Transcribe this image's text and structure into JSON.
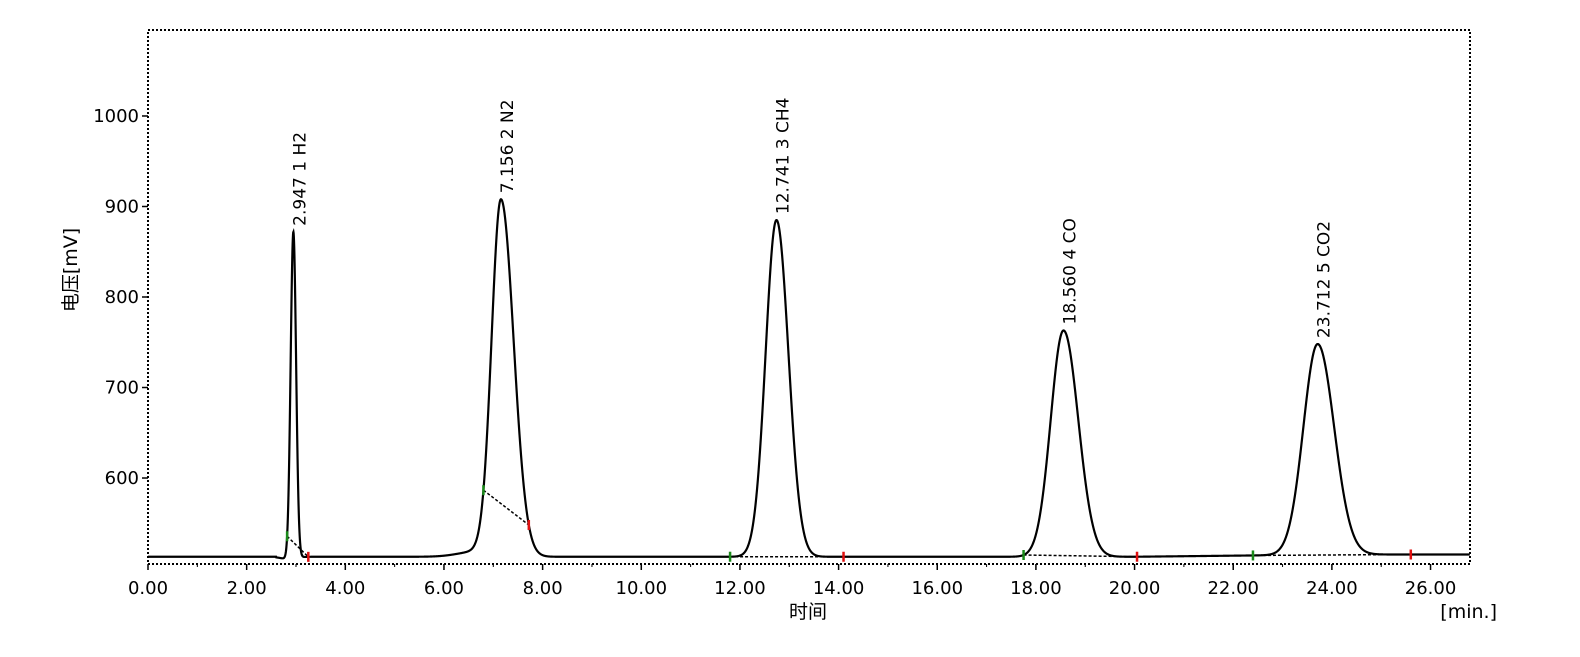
{
  "chart_data": {
    "type": "line",
    "title": "",
    "xlabel": "时间",
    "xunit": "[min.]",
    "ylabel": "电压[mV]",
    "xlim": [
      0,
      26.8
    ],
    "ylim": [
      505,
      1095
    ],
    "baseline_mv": 513,
    "x_ticks": [
      "0.00",
      "2.00",
      "4.00",
      "6.00",
      "8.00",
      "10.00",
      "12.00",
      "14.00",
      "16.00",
      "18.00",
      "20.00",
      "22.00",
      "24.00",
      "26.00"
    ],
    "x_tick_values": [
      0,
      2,
      4,
      6,
      8,
      10,
      12,
      14,
      16,
      18,
      20,
      22,
      24,
      26
    ],
    "y_ticks": [
      "600",
      "700",
      "800",
      "900",
      "1000"
    ],
    "y_tick_values": [
      600,
      700,
      800,
      900,
      1000
    ],
    "peaks": [
      {
        "number": "1",
        "name": "H2",
        "rt": "2.947",
        "x": 2.947,
        "height_mv": 872,
        "start": 2.82,
        "end": 3.25
      },
      {
        "number": "2",
        "name": "N2",
        "rt": "7.156",
        "x": 7.156,
        "height_mv": 908,
        "start": 6.8,
        "end": 7.72
      },
      {
        "number": "3",
        "name": "CH4",
        "rt": "12.741",
        "x": 12.741,
        "height_mv": 885,
        "start": 11.8,
        "end": 14.1
      },
      {
        "number": "4",
        "name": "CO",
        "rt": "18.560",
        "x": 18.56,
        "height_mv": 763,
        "start": 17.75,
        "end": 20.05
      },
      {
        "number": "5",
        "name": "CO2",
        "rt": "23.712",
        "x": 23.712,
        "height_mv": 748,
        "start": 22.4,
        "end": 25.6
      }
    ],
    "colors": {
      "trace": "#000000",
      "peak_start_marker": "#1a8a1a",
      "peak_end_marker": "#e01010"
    },
    "grid": false,
    "legend": "none"
  }
}
